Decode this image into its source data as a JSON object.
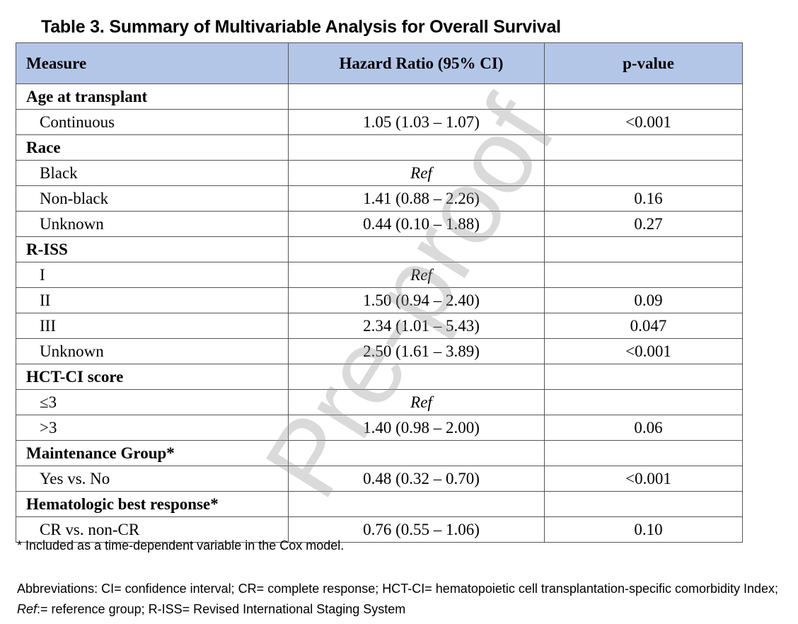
{
  "title": "Table 3. Summary of Multivariable Analysis for Overall Survival",
  "headers": {
    "measure": "Measure",
    "hr": "Hazard Ratio (95% CI)",
    "p": "p-value"
  },
  "rows": [
    {
      "kind": "section",
      "measure": "Age at transplant",
      "hr": "",
      "p": ""
    },
    {
      "kind": "sub",
      "measure": "Continuous",
      "hr": "1.05 (1.03 – 1.07)",
      "p": "<0.001"
    },
    {
      "kind": "section",
      "measure": "Race",
      "hr": "",
      "p": ""
    },
    {
      "kind": "sub",
      "measure": "Black",
      "hr": "Ref",
      "p": ""
    },
    {
      "kind": "sub",
      "measure": "Non-black",
      "hr": "1.41 (0.88 – 2.26)",
      "p": "0.16"
    },
    {
      "kind": "sub",
      "measure": "Unknown",
      "hr": "0.44 (0.10 – 1.88)",
      "p": "0.27"
    },
    {
      "kind": "section",
      "measure": "R-ISS",
      "hr": "",
      "p": ""
    },
    {
      "kind": "sub",
      "measure": "I",
      "hr": "Ref",
      "p": ""
    },
    {
      "kind": "sub",
      "measure": "II",
      "hr": "1.50 (0.94 – 2.40)",
      "p": "0.09"
    },
    {
      "kind": "sub",
      "measure": "III",
      "hr": "2.34 (1.01 – 5.43)",
      "p": "0.047"
    },
    {
      "kind": "sub",
      "measure": "Unknown",
      "hr": "2.50 (1.61 – 3.89)",
      "p": "<0.001"
    },
    {
      "kind": "section",
      "measure": "HCT-CI score",
      "hr": "",
      "p": ""
    },
    {
      "kind": "sub",
      "measure": "≤3",
      "hr": "Ref",
      "p": ""
    },
    {
      "kind": "sub",
      "measure": ">3",
      "hr": "1.40 (0.98 – 2.00)",
      "p": "0.06"
    },
    {
      "kind": "section",
      "measure": "Maintenance Group*",
      "hr": "",
      "p": ""
    },
    {
      "kind": "sub",
      "measure": "Yes vs. No",
      "hr": "0.48 (0.32 – 0.70)",
      "p": "<0.001"
    },
    {
      "kind": "section",
      "measure": "Hematologic best response*",
      "hr": "",
      "p": ""
    },
    {
      "kind": "sub",
      "measure": "CR vs. non-CR",
      "hr": "0.76 (0.55 – 1.06)",
      "p": "0.10"
    }
  ],
  "footnote": "* Included as a time-dependent variable in the Cox model.",
  "abbreviations": {
    "label": "Abbreviations",
    "part1": ": CI= confidence interval; CR= complete response; HCT-CI= hematopoietic cell transplantation-specific comorbidity Index; ",
    "ref_italic": "Ref",
    "part2": ":= reference group; R-ISS= Revised International Staging System"
  },
  "watermark": "Pre-proof",
  "colors": {
    "header_bg": "#b4c6e7",
    "border": "#555555",
    "watermark": "#969696"
  }
}
